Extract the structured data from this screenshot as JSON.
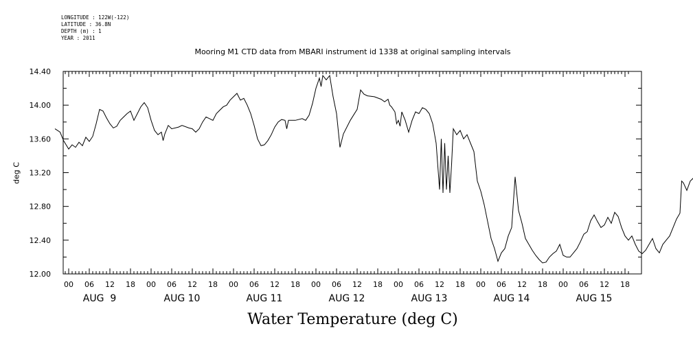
{
  "meta": {
    "longitude": "LONGITUDE : 122W(-122)",
    "latitude": "LATITUDE : 36.8N",
    "depth": "DEPTH (m) : 1",
    "year": "YEAR : 2011"
  },
  "chart_data": {
    "type": "line",
    "title": "Mooring M1 CTD data from MBARI instrument id 1338 at original sampling intervals",
    "xlabel": "Water Temperature (deg C)",
    "ylabel": "deg C",
    "ylim": [
      12.0,
      14.4
    ],
    "xlim_hours": [
      -4,
      163
    ],
    "yticks": [
      "12.00",
      "12.40",
      "12.80",
      "13.20",
      "13.60",
      "14.00",
      "14.40"
    ],
    "hour_ticks": [
      "00",
      "06",
      "12",
      "18"
    ],
    "days": [
      "AUG  9",
      "AUG 10",
      "AUG 11",
      "AUG 12",
      "AUG 13",
      "AUG 14",
      "AUG 15"
    ],
    "grid": false,
    "series": [
      {
        "points": [
          [
            -4,
            13.72
          ],
          [
            -2.5,
            13.68
          ],
          [
            -1.5,
            13.58
          ],
          [
            0,
            13.48
          ],
          [
            1,
            13.53
          ],
          [
            2,
            13.5
          ],
          [
            3,
            13.56
          ],
          [
            4,
            13.52
          ],
          [
            5,
            13.62
          ],
          [
            6,
            13.57
          ],
          [
            7,
            13.63
          ],
          [
            8,
            13.78
          ],
          [
            9,
            13.95
          ],
          [
            10,
            13.93
          ],
          [
            11,
            13.85
          ],
          [
            12,
            13.78
          ],
          [
            13,
            13.73
          ],
          [
            14,
            13.75
          ],
          [
            15,
            13.82
          ],
          [
            16,
            13.86
          ],
          [
            17,
            13.9
          ],
          [
            18,
            13.93
          ],
          [
            19,
            13.82
          ],
          [
            20,
            13.9
          ],
          [
            21,
            13.98
          ],
          [
            22,
            14.03
          ],
          [
            23,
            13.97
          ],
          [
            24,
            13.82
          ],
          [
            25,
            13.7
          ],
          [
            26,
            13.65
          ],
          [
            27,
            13.68
          ],
          [
            27.5,
            13.58
          ],
          [
            28,
            13.66
          ],
          [
            29,
            13.76
          ],
          [
            30,
            13.72
          ],
          [
            32,
            13.74
          ],
          [
            33,
            13.76
          ],
          [
            35,
            13.73
          ],
          [
            36,
            13.72
          ],
          [
            37,
            13.68
          ],
          [
            38,
            13.72
          ],
          [
            39,
            13.8
          ],
          [
            40,
            13.86
          ],
          [
            41,
            13.84
          ],
          [
            42,
            13.82
          ],
          [
            43,
            13.9
          ],
          [
            44,
            13.94
          ],
          [
            45,
            13.98
          ],
          [
            46,
            14.0
          ],
          [
            47,
            14.06
          ],
          [
            48,
            14.1
          ],
          [
            49,
            14.14
          ],
          [
            50,
            14.06
          ],
          [
            51,
            14.08
          ],
          [
            52,
            14.0
          ],
          [
            53,
            13.9
          ],
          [
            54,
            13.76
          ],
          [
            55,
            13.6
          ],
          [
            56,
            13.52
          ],
          [
            57,
            13.53
          ],
          [
            58,
            13.58
          ],
          [
            59,
            13.65
          ],
          [
            60,
            13.74
          ],
          [
            61,
            13.8
          ],
          [
            62,
            13.83
          ],
          [
            63,
            13.82
          ],
          [
            63.5,
            13.72
          ],
          [
            64,
            13.82
          ],
          [
            66,
            13.82
          ],
          [
            68,
            13.84
          ],
          [
            69,
            13.82
          ],
          [
            70,
            13.88
          ],
          [
            71,
            14.02
          ],
          [
            72,
            14.2
          ],
          [
            73,
            14.32
          ],
          [
            73.5,
            14.22
          ],
          [
            74,
            14.35
          ],
          [
            75,
            14.3
          ],
          [
            76,
            14.35
          ],
          [
            77,
            14.1
          ],
          [
            78,
            13.9
          ],
          [
            79,
            13.5
          ],
          [
            80,
            13.66
          ],
          [
            82,
            13.82
          ],
          [
            84,
            13.95
          ],
          [
            85,
            14.18
          ],
          [
            86,
            14.13
          ],
          [
            87,
            14.11
          ],
          [
            89,
            14.1
          ],
          [
            91,
            14.07
          ],
          [
            92,
            14.04
          ],
          [
            93,
            14.07
          ],
          [
            93.5,
            14.0
          ],
          [
            94,
            13.98
          ],
          [
            95,
            13.92
          ],
          [
            95.5,
            13.78
          ],
          [
            96,
            13.82
          ],
          [
            96.5,
            13.75
          ],
          [
            97,
            13.92
          ],
          [
            98,
            13.82
          ],
          [
            99,
            13.68
          ],
          [
            100,
            13.82
          ],
          [
            101,
            13.92
          ],
          [
            102,
            13.9
          ],
          [
            103,
            13.97
          ],
          [
            104,
            13.95
          ],
          [
            105,
            13.9
          ],
          [
            106,
            13.78
          ],
          [
            107,
            13.55
          ],
          [
            108,
            13.0
          ],
          [
            108.5,
            13.6
          ],
          [
            109,
            12.96
          ],
          [
            109.5,
            13.55
          ],
          [
            110,
            13.0
          ],
          [
            110.5,
            13.4
          ],
          [
            111,
            12.96
          ],
          [
            111.5,
            13.3
          ],
          [
            112,
            13.72
          ],
          [
            113,
            13.65
          ],
          [
            114,
            13.7
          ],
          [
            115,
            13.6
          ],
          [
            116,
            13.65
          ],
          [
            117,
            13.55
          ],
          [
            118,
            13.45
          ],
          [
            119,
            13.1
          ],
          [
            120,
            12.98
          ],
          [
            121,
            12.82
          ],
          [
            122,
            12.62
          ],
          [
            123,
            12.42
          ],
          [
            124,
            12.3
          ],
          [
            125,
            12.15
          ],
          [
            126,
            12.25
          ],
          [
            127,
            12.3
          ],
          [
            128,
            12.45
          ],
          [
            129,
            12.55
          ],
          [
            130,
            13.15
          ],
          [
            131,
            12.75
          ],
          [
            132,
            12.6
          ],
          [
            133,
            12.42
          ],
          [
            134,
            12.35
          ],
          [
            135,
            12.28
          ],
          [
            136,
            12.22
          ],
          [
            137,
            12.17
          ],
          [
            138,
            12.13
          ],
          [
            139,
            12.14
          ],
          [
            140,
            12.2
          ],
          [
            141,
            12.24
          ],
          [
            142,
            12.27
          ],
          [
            143,
            12.35
          ],
          [
            144,
            12.22
          ],
          [
            145,
            12.2
          ],
          [
            146,
            12.2
          ],
          [
            147,
            12.25
          ],
          [
            148,
            12.3
          ],
          [
            149,
            12.38
          ],
          [
            150,
            12.47
          ],
          [
            151,
            12.5
          ],
          [
            152,
            12.63
          ],
          [
            153,
            12.7
          ],
          [
            154,
            12.62
          ],
          [
            155,
            12.55
          ],
          [
            156,
            12.58
          ],
          [
            157,
            12.67
          ],
          [
            158,
            12.6
          ],
          [
            159,
            12.73
          ],
          [
            160,
            12.68
          ],
          [
            161,
            12.55
          ],
          [
            162,
            12.45
          ],
          [
            163,
            12.4
          ],
          [
            164,
            12.45
          ],
          [
            165,
            12.35
          ],
          [
            166,
            12.27
          ],
          [
            167,
            12.24
          ],
          [
            168,
            12.28
          ],
          [
            169,
            12.35
          ],
          [
            170,
            12.42
          ],
          [
            171,
            12.3
          ],
          [
            172,
            12.25
          ],
          [
            173,
            12.35
          ],
          [
            174,
            12.4
          ],
          [
            175,
            12.45
          ],
          [
            176,
            12.55
          ],
          [
            177,
            12.65
          ],
          [
            178,
            12.72
          ],
          [
            178.5,
            13.1
          ],
          [
            179,
            13.08
          ],
          [
            180,
            12.99
          ],
          [
            181,
            13.1
          ],
          [
            182,
            13.14
          ],
          [
            183,
            13.1
          ],
          [
            183.5,
            13.13
          ],
          [
            184,
            13.01
          ]
        ]
      }
    ]
  }
}
